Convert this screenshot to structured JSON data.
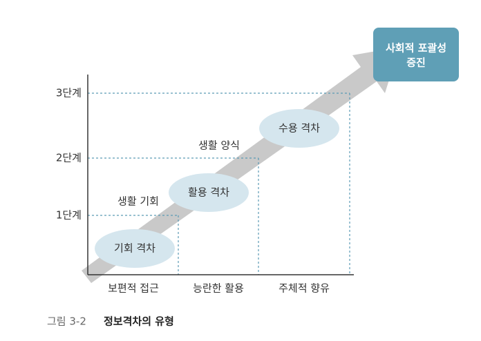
{
  "levels": [
    "3단계",
    "2단계",
    "1단계"
  ],
  "stages": [
    "보편적 접근",
    "능란한 활용",
    "주체적 향유"
  ],
  "gaps": [
    "기회 격차",
    "활용 격차",
    "수용 격차"
  ],
  "side_labels": [
    "생활 기회",
    "생활 양식"
  ],
  "goal": [
    "사회적 포괄성",
    "증진"
  ],
  "caption": {
    "number": "그림 3-2",
    "title": "정보격차의 유형"
  }
}
